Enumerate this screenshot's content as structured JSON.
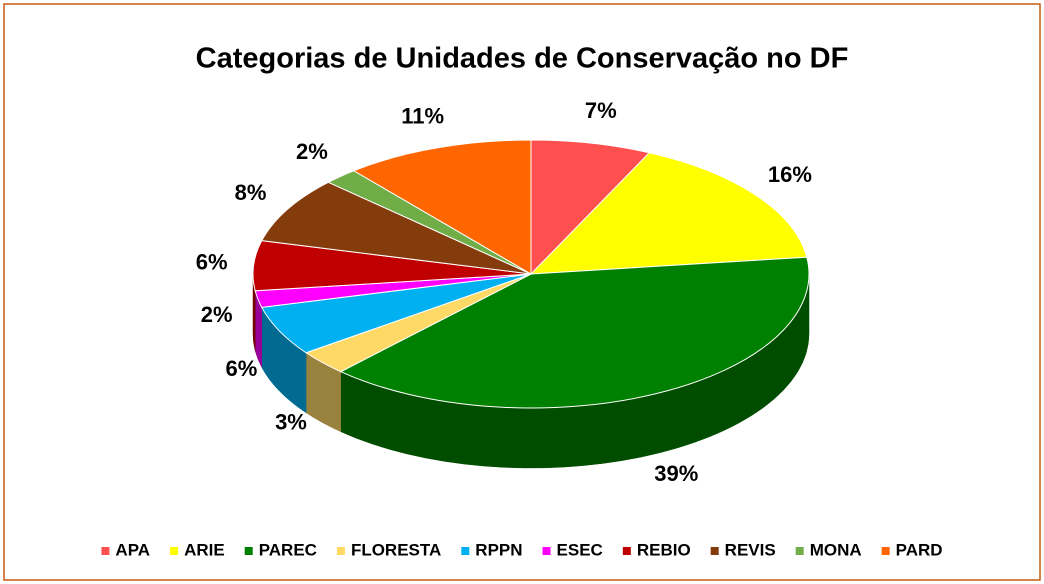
{
  "chart_data": {
    "type": "pie",
    "title": "Categorias de Unidades de Conservação no DF",
    "categories": [
      "APA",
      "ARIE",
      "PAREC",
      "FLORESTA",
      "RPPN",
      "ESEC",
      "REBIO",
      "REVIS",
      "MONA",
      "PARD"
    ],
    "values": [
      7,
      16,
      39,
      3,
      6,
      2,
      6,
      8,
      2,
      11
    ],
    "value_labels": [
      "7%",
      "16%",
      "39%",
      "3%",
      "6%",
      "2%",
      "6%",
      "8%",
      "2%",
      "11%"
    ],
    "colors": [
      "#ff5050",
      "#ffff00",
      "#008000",
      "#ffd966",
      "#00b0f0",
      "#ff00ff",
      "#c00000",
      "#843c0c",
      "#70ad47",
      "#ff6600"
    ],
    "legend": "bottom"
  }
}
